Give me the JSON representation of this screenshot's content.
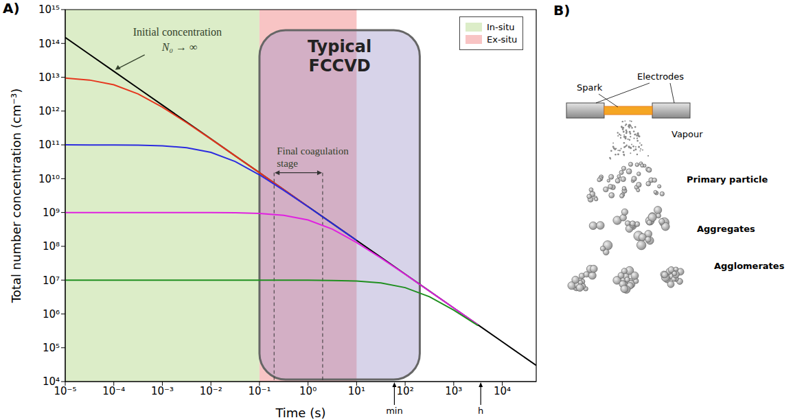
{
  "chart_data": {
    "type": "line",
    "panel_label": "A)",
    "log": true,
    "grid": false,
    "legend": "top right",
    "x_label": "Time (s)",
    "y_label": "Total number concentration (cm⁻³)",
    "xlim": [
      1e-05,
      50000.0
    ],
    "xticks": [
      {
        "value": 1e-05,
        "label": "10⁻⁵"
      },
      {
        "value": 0.0001,
        "label": "10⁻⁴"
      },
      {
        "value": 0.001,
        "label": "10⁻³"
      },
      {
        "value": 0.01,
        "label": "10⁻²"
      },
      {
        "value": 0.1,
        "label": "10⁻¹"
      },
      {
        "value": 1,
        "label": "10⁰"
      },
      {
        "value": 10,
        "label": "10¹"
      },
      {
        "value": 100,
        "label": "10²"
      },
      {
        "value": 1000,
        "label": "10³"
      },
      {
        "value": 10000,
        "label": "10⁴"
      }
    ],
    "ylim": [
      10000.0,
      1000000000000000.0
    ],
    "yticks": [
      {
        "value": 10000.0,
        "label": "10⁴"
      },
      {
        "value": 100000.0,
        "label": "10⁵"
      },
      {
        "value": 1000000.0,
        "label": "10⁶"
      },
      {
        "value": 10000000.0,
        "label": "10⁷"
      },
      {
        "value": 100000000.0,
        "label": "10⁸"
      },
      {
        "value": 1000000000.0,
        "label": "10⁹"
      },
      {
        "value": 10000000000.0,
        "label": "10¹⁰"
      },
      {
        "value": 100000000000.0,
        "label": "10¹¹"
      },
      {
        "value": 1000000000000.0,
        "label": "10¹²"
      },
      {
        "value": 10000000000000.0,
        "label": "10¹³"
      },
      {
        "value": 100000000000000.0,
        "label": "10¹⁴"
      },
      {
        "value": 1000000000000000.0,
        "label": "10¹⁵"
      }
    ],
    "x": [
      1e-05,
      3.162e-05,
      0.0001,
      0.0003162,
      0.001,
      0.003162,
      0.01,
      0.03162,
      0.1,
      0.3162,
      1,
      3.162,
      10,
      31.62,
      100,
      316.2,
      1000,
      3162,
      10000,
      50000
    ],
    "series": [
      {
        "color": "#000000",
        "values": [
          150000000000000.0,
          47400000000000.0,
          15000000000000.0,
          4740000000000.0,
          1500000000000.0,
          474000000000.0,
          150000000000.0,
          47400000000.0,
          15000000000.0,
          4740000000.0,
          1500000000.0,
          474000000.0,
          150000000.0,
          47400000.0,
          15000000.0,
          4740000.0,
          1500000.0,
          474000.0,
          150000.0,
          30000.0
        ]
      },
      {
        "color": "#e6361e",
        "values": [
          9400000000000.0,
          8260000000000.0,
          6000000000000.0,
          3220000000000.0,
          1300000000000.0,
          453000000000.0,
          148000000000.0,
          47200000000.0,
          15000000000.0,
          4740000000.0,
          1500000000.0,
          null,
          null,
          null,
          null,
          null,
          null,
          null,
          null,
          null
        ]
      },
      {
        "color": "#2b2be0",
        "values": [
          100000000000.0,
          99800000000.0,
          99300000000.0,
          97900000000.0,
          93800000000.0,
          82600000000.0,
          60000000000.0,
          32200000000.0,
          13000000000.0,
          4530000000.0,
          1480000000.0,
          472000000.0,
          150000000.0,
          null,
          null,
          null,
          null,
          null,
          null,
          null
        ]
      },
      {
        "color": "#e020e0",
        "values": [
          1000000000.0,
          1000000000.0,
          1000000000.0,
          1000000000.0,
          999000000.0,
          998000000.0,
          993000000.0,
          979000000.0,
          938000000.0,
          826000000.0,
          600000000.0,
          322000000.0,
          130000000.0,
          45300000.0,
          14800000.0,
          4720000.0,
          1500000.0,
          474000.0,
          null,
          null
        ]
      },
      {
        "color": "#1f8f1f",
        "values": [
          10000000.0,
          10000000.0,
          10000000.0,
          10000000.0,
          10000000.0,
          10000000.0,
          10000000.0,
          10000000.0,
          10000000.0,
          9980000.0,
          9930000.0,
          9790000.0,
          9380000.0,
          8260000.0,
          6000000.0,
          3220000.0,
          1300000.0,
          453000.0,
          null,
          null
        ]
      }
    ],
    "regions": [
      {
        "label": "In-situ",
        "x": [
          1e-05,
          0.1
        ],
        "color": "#dcedc8"
      },
      {
        "label": "Ex-situ",
        "x": [
          0.1,
          10
        ],
        "color": "#f8c4c4"
      }
    ],
    "box": {
      "label": "Typical FCCVD",
      "x": [
        0.1,
        200
      ],
      "color": "#9a90c8"
    },
    "annotations": {
      "initial": {
        "text": "Initial concentration",
        "subtext": "N₀ → ∞"
      },
      "final_stage": {
        "text": "Final coagulation stage",
        "x": [
          0.2,
          2
        ]
      },
      "time_marks": [
        {
          "x": 60,
          "label": "min"
        },
        {
          "x": 3600,
          "label": "h"
        }
      ]
    }
  },
  "diagram": {
    "panel_label": "B)",
    "labels": {
      "spark": "Spark",
      "electrodes": "Electrodes",
      "vapour": "Vapour",
      "primary_particle": "Primary particle",
      "aggregates": "Aggregates",
      "agglomerates": "Agglomerates"
    }
  }
}
